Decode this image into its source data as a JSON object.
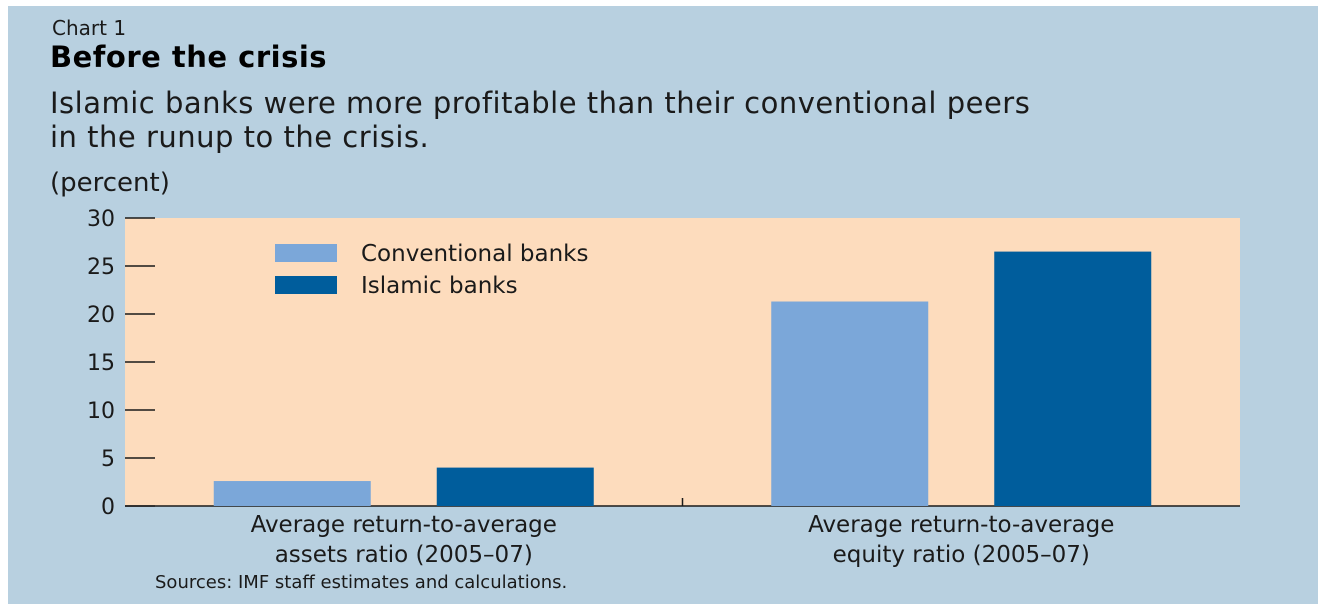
{
  "header": {
    "chart_number": "Chart 1",
    "title": "Before the crisis",
    "subtitle": "Islamic banks were more profitable than their conventional peers in the runup to the crisis.",
    "unit": "(percent)"
  },
  "footer": {
    "source": "Sources: IMF staff estimates and calculations."
  },
  "colors": {
    "panel_background": "#b8d0e0",
    "plot_background": "#fddcbd",
    "conventional": "#7ba7d9",
    "islamic": "#005d9c"
  },
  "chart_data": {
    "type": "bar",
    "categories": [
      [
        "Average return-to-average",
        "assets ratio (2005–07)"
      ],
      [
        "Average return-to-average",
        "equity ratio (2005–07)"
      ]
    ],
    "series": [
      {
        "name": "Conventional banks",
        "values": [
          2.6,
          21.3
        ],
        "color": "#7ba7d9"
      },
      {
        "name": "Islamic banks",
        "values": [
          4.0,
          26.5
        ],
        "color": "#005d9c"
      }
    ],
    "ylim": [
      0,
      30
    ],
    "yticks": [
      0,
      5,
      10,
      15,
      20,
      25,
      30
    ],
    "legend": "top-left",
    "grid": false
  }
}
